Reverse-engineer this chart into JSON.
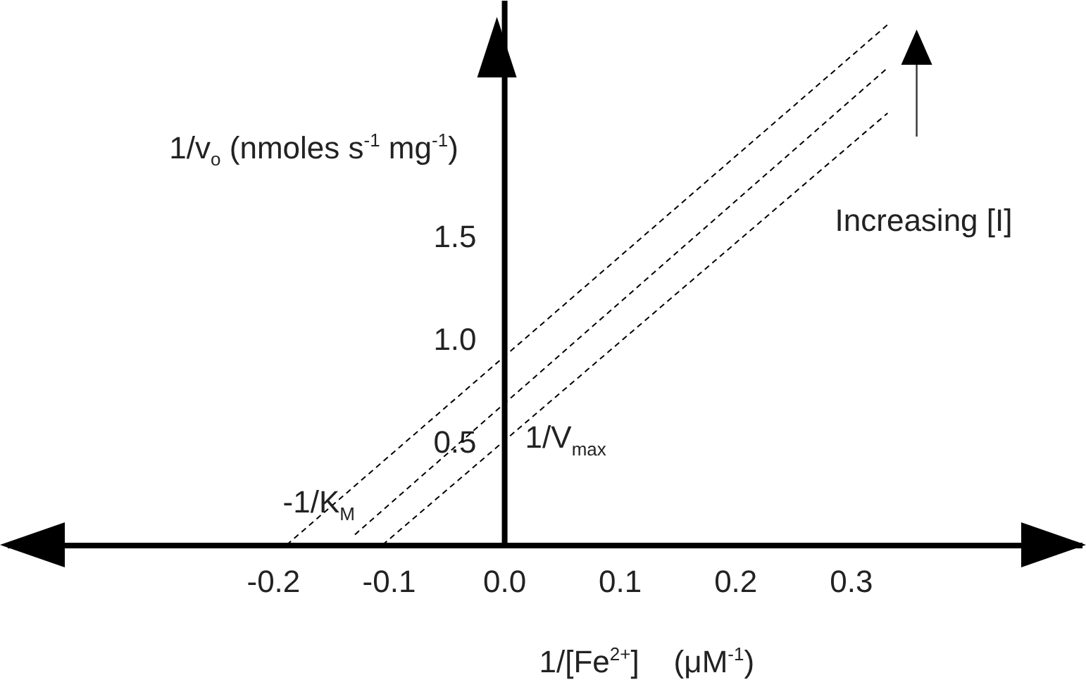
{
  "chart_data": {
    "type": "line",
    "xlabel": "1/[Fe$^{2+}$]    (μM$^{-1}$)",
    "ylabel": "1/v$_{o}$ (nmoles s$^{-1}$ mg$^{-1}$)",
    "xlim": [
      -0.43,
      0.5
    ],
    "ylim": [
      0,
      2.65
    ],
    "xticks": [
      {
        "value": -0.2,
        "label": "-0.2"
      },
      {
        "value": -0.1,
        "label": "-0.1"
      },
      {
        "value": 0,
        "label": "0.0"
      },
      {
        "value": 0.1,
        "label": "0.1"
      },
      {
        "value": 0.2,
        "label": "0.2"
      },
      {
        "value": 0.3,
        "label": "0.3"
      }
    ],
    "yticks": [
      {
        "value": 0.5,
        "label": "0.5"
      },
      {
        "value": 1,
        "label": "1.0"
      },
      {
        "value": 1.5,
        "label": "1.5"
      }
    ],
    "line_style": "dashed",
    "marker": "none",
    "grid": false,
    "series": [
      {
        "color": "#000000",
        "x": [
          -0.188,
          0.332
        ],
        "values": [
          0,
          2.53
        ]
      },
      {
        "color": "#000000",
        "x": [
          -0.129,
          0.332
        ],
        "values": [
          0.05,
          2.32
        ]
      },
      {
        "color": "#000000",
        "x": [
          -0.105,
          0.332
        ],
        "values": [
          0,
          2.1
        ]
      }
    ],
    "annotations": [
      "-1/K$_{M}$",
      "1/V$_{max}$",
      "Increasing [I]"
    ]
  }
}
